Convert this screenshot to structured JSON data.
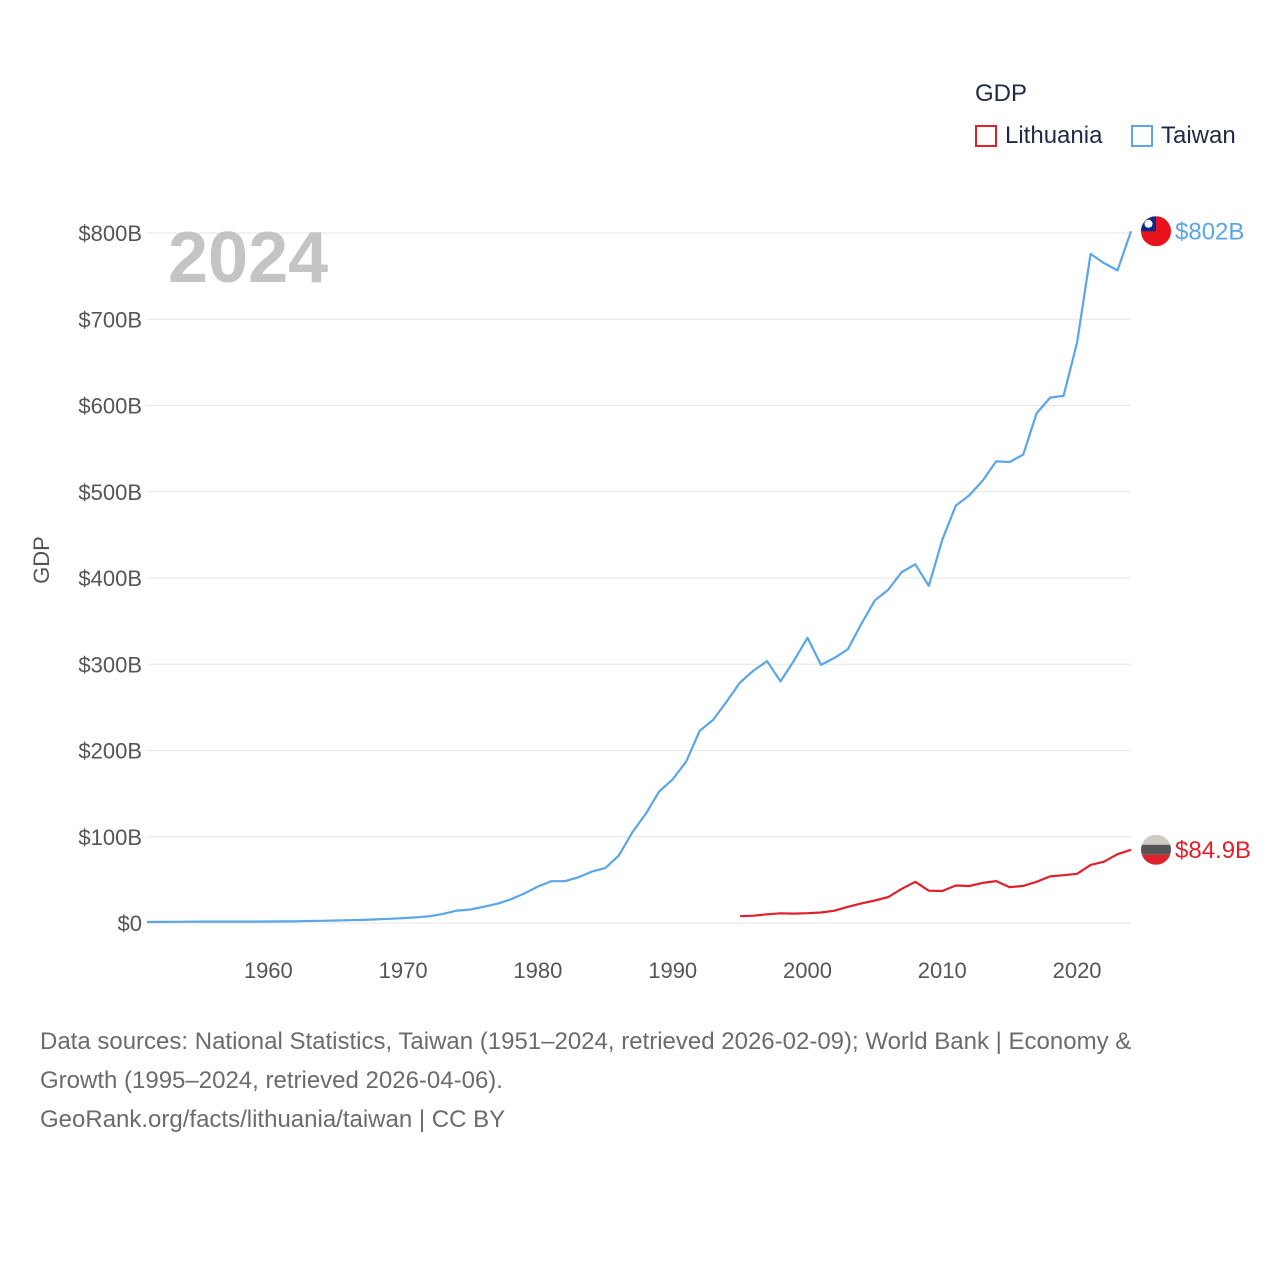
{
  "legend": {
    "title": "GDP",
    "items": [
      {
        "label": "Lithuania",
        "color": "#e0202b"
      },
      {
        "label": "Taiwan",
        "color": "#5aa6e6"
      }
    ]
  },
  "year_label": "2024",
  "footer": {
    "line1": "Data sources: National Statistics, Taiwan (1951–2024, retrieved 2026-02-09); World Bank | Economy &",
    "line2": "Growth (1995–2024, retrieved 2026-04-06).",
    "line3": "GeoRank.org/facts/lithuania/taiwan | CC BY"
  },
  "chart_data": {
    "type": "line",
    "ylabel": "GDP",
    "xlabel": "",
    "xlim": [
      1951,
      2024
    ],
    "ylim": [
      0,
      800
    ],
    "x_ticks": [
      1960,
      1970,
      1980,
      1990,
      2000,
      2010,
      2020
    ],
    "y_ticks": [
      {
        "value": 0,
        "label": "$0"
      },
      {
        "value": 100,
        "label": "$100B"
      },
      {
        "value": 200,
        "label": "$200B"
      },
      {
        "value": 300,
        "label": "$300B"
      },
      {
        "value": 400,
        "label": "$400B"
      },
      {
        "value": 500,
        "label": "$500B"
      },
      {
        "value": 600,
        "label": "$600B"
      },
      {
        "value": 700,
        "label": "$700B"
      },
      {
        "value": 800,
        "label": "$800B"
      }
    ],
    "series": [
      {
        "name": "Taiwan",
        "color": "#5aa6e6",
        "end_label": "$802B",
        "x": [
          1951,
          1952,
          1953,
          1954,
          1955,
          1956,
          1957,
          1958,
          1959,
          1960,
          1961,
          1962,
          1963,
          1964,
          1965,
          1966,
          1967,
          1968,
          1969,
          1970,
          1971,
          1972,
          1973,
          1974,
          1975,
          1976,
          1977,
          1978,
          1979,
          1980,
          1981,
          1982,
          1983,
          1984,
          1985,
          1986,
          1987,
          1988,
          1989,
          1990,
          1991,
          1992,
          1993,
          1994,
          1995,
          1996,
          1997,
          1998,
          1999,
          2000,
          2001,
          2002,
          2003,
          2004,
          2005,
          2006,
          2007,
          2008,
          2009,
          2010,
          2011,
          2012,
          2013,
          2014,
          2015,
          2016,
          2017,
          2018,
          2019,
          2020,
          2021,
          2022,
          2023,
          2024
        ],
        "values": [
          1.2,
          1.3,
          1.4,
          1.5,
          1.6,
          1.6,
          1.6,
          1.6,
          1.6,
          1.7,
          1.8,
          2.0,
          2.3,
          2.6,
          2.9,
          3.2,
          3.6,
          4.2,
          4.9,
          5.7,
          6.6,
          7.9,
          10.7,
          14.4,
          15.7,
          18.9,
          22.4,
          27.5,
          34.2,
          42.3,
          48.5,
          48.5,
          53.0,
          59.6,
          63.6,
          78.2,
          105.0,
          126.5,
          152.6,
          166.6,
          187.1,
          222.8,
          235.5,
          256.7,
          279.0,
          292.7,
          303.5,
          280.1,
          304.2,
          330.7,
          299.3,
          307.4,
          317.4,
          346.9,
          374.1,
          386.5,
          406.9,
          415.9,
          390.8,
          444.3,
          483.9,
          495.8,
          512.9,
          535.3,
          534.5,
          543.1,
          590.8,
          609.2,
          611.3,
          673.2,
          775.8,
          765.1,
          756.6,
          802.0
        ]
      },
      {
        "name": "Lithuania",
        "color": "#e0202b",
        "end_label": "$84.9B",
        "x": [
          1995,
          1996,
          1997,
          1998,
          1999,
          2000,
          2001,
          2002,
          2003,
          2004,
          2005,
          2006,
          2007,
          2008,
          2009,
          2010,
          2011,
          2012,
          2013,
          2014,
          2015,
          2016,
          2017,
          2018,
          2019,
          2020,
          2021,
          2022,
          2023,
          2024
        ],
        "values": [
          7.9,
          8.5,
          10.1,
          11.2,
          10.9,
          11.4,
          12.2,
          14.3,
          18.8,
          22.7,
          26.1,
          30.2,
          39.7,
          47.8,
          37.4,
          37.1,
          43.5,
          42.9,
          46.5,
          48.6,
          41.5,
          43.0,
          47.8,
          54.0,
          55.4,
          57.1,
          67.4,
          71.1,
          79.8,
          84.9
        ]
      }
    ]
  }
}
